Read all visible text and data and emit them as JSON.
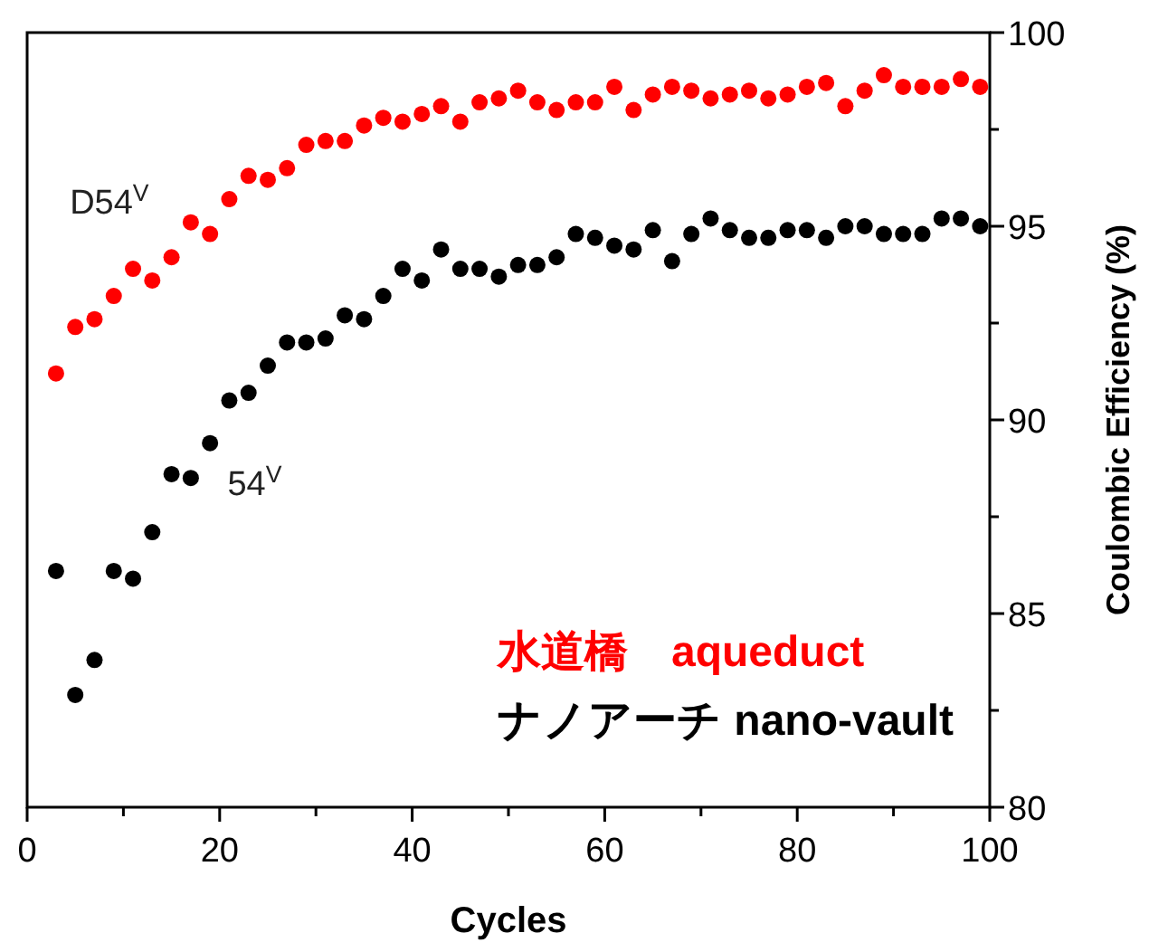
{
  "chart_data": {
    "type": "scatter",
    "xlabel": "Cycles",
    "ylabel": "Coulombic Efficiency (%)",
    "xlim": [
      0,
      100
    ],
    "ylim": [
      80,
      100
    ],
    "xticks": [
      0,
      {
        "value": 10,
        "label": null
      },
      20,
      {
        "value": 30,
        "label": null
      },
      40,
      {
        "value": 50,
        "label": null
      },
      60,
      {
        "value": 70,
        "label": null
      },
      80,
      {
        "value": 90,
        "label": null
      },
      100
    ],
    "yticks": [
      80,
      {
        "value": 82.5,
        "label": null
      },
      85,
      {
        "value": 87.5,
        "label": null
      },
      90,
      {
        "value": 92.5,
        "label": null
      },
      95,
      {
        "value": 97.5,
        "label": null
      },
      100
    ],
    "x": [
      3,
      5,
      7,
      9,
      11,
      13,
      15,
      17,
      19,
      21,
      23,
      25,
      27,
      29,
      31,
      33,
      35,
      37,
      39,
      41,
      43,
      45,
      47,
      49,
      51,
      53,
      55,
      57,
      59,
      61,
      63,
      65,
      67,
      69,
      71,
      73,
      75,
      77,
      79,
      81,
      83,
      85,
      87,
      89,
      91,
      93,
      95,
      97,
      99
    ],
    "series": [
      {
        "name": "水道橋　aqueduct",
        "color": "#ff0000",
        "values": [
          91.2,
          92.4,
          92.6,
          93.2,
          93.9,
          93.6,
          94.2,
          95.1,
          94.8,
          95.7,
          96.3,
          96.2,
          96.5,
          97.1,
          97.2,
          97.2,
          97.6,
          97.8,
          97.7,
          97.9,
          98.1,
          97.7,
          98.2,
          98.3,
          98.5,
          98.2,
          98.0,
          98.2,
          98.2,
          98.6,
          98.0,
          98.4,
          98.6,
          98.5,
          98.3,
          98.4,
          98.5,
          98.3,
          98.4,
          98.6,
          98.7,
          98.1,
          98.5,
          98.9,
          98.6,
          98.6,
          98.6,
          98.8,
          98.6
        ]
      },
      {
        "name": "ナノアーチ nano-vault",
        "color": "#000000",
        "values": [
          86.1,
          82.9,
          83.8,
          86.1,
          85.9,
          87.1,
          88.6,
          88.5,
          89.4,
          90.5,
          90.7,
          91.4,
          92.0,
          92.0,
          92.1,
          92.7,
          92.6,
          93.2,
          93.9,
          93.6,
          94.4,
          93.9,
          93.9,
          93.7,
          94.0,
          94.0,
          94.2,
          94.8,
          94.7,
          94.5,
          94.4,
          94.9,
          94.1,
          94.8,
          95.2,
          94.9,
          94.7,
          94.7,
          94.9,
          94.9,
          94.7,
          95.0,
          95.0,
          94.8,
          94.8,
          94.8,
          95.2,
          95.2,
          95.0
        ]
      }
    ],
    "annotations": [
      "D54$^{V}$",
      "54$^{V}$"
    ],
    "marker": "circle",
    "legend": "bottom right",
    "grid": false
  }
}
